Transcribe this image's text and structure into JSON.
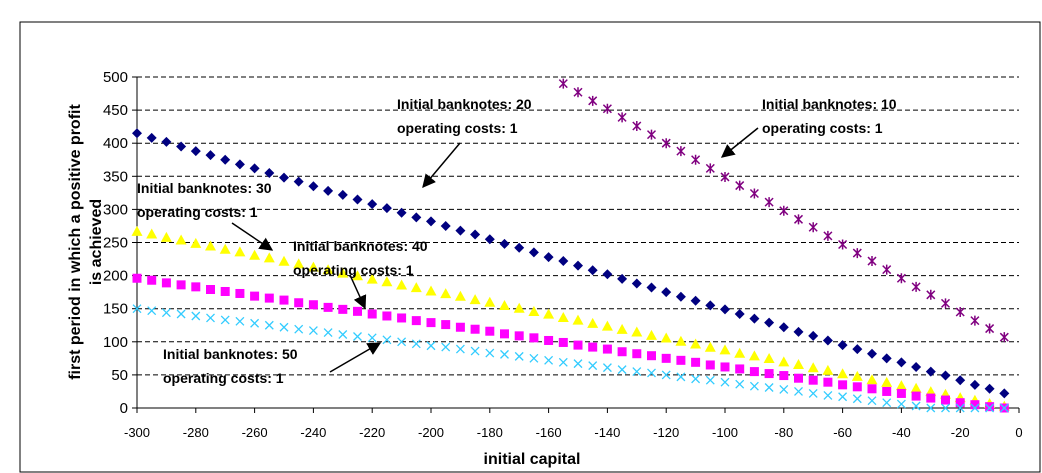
{
  "chart_data": {
    "type": "scatter",
    "xlabel": "initial capital",
    "ylabel": [
      "first period in which a positive profit",
      "is achieved"
    ],
    "xlim": [
      -300,
      0
    ],
    "xticks": [
      -300,
      -280,
      -260,
      -240,
      -220,
      -200,
      -180,
      -160,
      -140,
      -120,
      -100,
      -80,
      -60,
      -40,
      -20,
      0
    ],
    "ylim": [
      0,
      500
    ],
    "yticks": [
      0,
      50,
      100,
      150,
      200,
      250,
      300,
      350,
      400,
      450,
      500
    ],
    "grid": true,
    "x": [
      -300,
      -295,
      -290,
      -285,
      -280,
      -275,
      -270,
      -265,
      -260,
      -255,
      -250,
      -245,
      -240,
      -235,
      -230,
      -225,
      -220,
      -215,
      -210,
      -205,
      -200,
      -195,
      -190,
      -185,
      -180,
      -175,
      -170,
      -165,
      -160,
      -155,
      -150,
      -145,
      -140,
      -135,
      -130,
      -125,
      -120,
      -115,
      -110,
      -105,
      -100,
      -95,
      -90,
      -85,
      -80,
      -75,
      -70,
      -65,
      -60,
      -55,
      -50,
      -45,
      -40,
      -35,
      -30,
      -25,
      -20,
      -15,
      -10,
      -5
    ],
    "series": [
      {
        "color": "#000080",
        "marker": "diamond",
        "values": [
          415,
          408,
          402,
          395,
          388,
          382,
          375,
          368,
          362,
          355,
          348,
          342,
          335,
          328,
          322,
          315,
          308,
          302,
          295,
          288,
          282,
          275,
          268,
          262,
          255,
          248,
          242,
          235,
          228,
          222,
          215,
          208,
          202,
          195,
          188,
          182,
          175,
          168,
          162,
          155,
          149,
          142,
          135,
          129,
          122,
          115,
          109,
          102,
          95,
          89,
          82,
          75,
          69,
          62,
          55,
          49,
          42,
          35,
          29,
          22
        ]
      },
      {
        "color": "#800080",
        "marker": "star",
        "values": [
          null,
          null,
          null,
          null,
          null,
          null,
          null,
          null,
          null,
          null,
          null,
          null,
          null,
          null,
          null,
          null,
          null,
          null,
          null,
          null,
          null,
          null,
          null,
          null,
          null,
          null,
          null,
          null,
          null,
          490,
          477,
          464,
          452,
          439,
          426,
          413,
          400,
          388,
          375,
          362,
          349,
          336,
          324,
          311,
          298,
          285,
          273,
          260,
          247,
          234,
          222,
          209,
          196,
          183,
          171,
          158,
          145,
          132,
          120,
          107
        ]
      },
      {
        "color": "#ffff00",
        "marker": "triangle",
        "values": [
          266,
          262,
          257,
          253,
          248,
          244,
          239,
          235,
          230,
          226,
          221,
          217,
          212,
          208,
          203,
          199,
          194,
          190,
          185,
          181,
          176,
          172,
          168,
          163,
          159,
          154,
          150,
          145,
          141,
          136,
          132,
          127,
          123,
          118,
          114,
          109,
          105,
          100,
          96,
          91,
          87,
          82,
          78,
          74,
          69,
          65,
          60,
          56,
          51,
          47,
          42,
          38,
          33,
          29,
          24,
          20,
          15,
          11,
          6,
          2
        ]
      },
      {
        "color": "#ff00ff",
        "marker": "square",
        "values": [
          196,
          193,
          189,
          186,
          183,
          179,
          176,
          173,
          169,
          166,
          163,
          159,
          156,
          152,
          149,
          146,
          142,
          139,
          136,
          132,
          129,
          126,
          122,
          119,
          116,
          112,
          109,
          106,
          102,
          99,
          95,
          92,
          89,
          85,
          82,
          79,
          75,
          72,
          69,
          65,
          62,
          59,
          55,
          52,
          49,
          45,
          42,
          39,
          35,
          32,
          29,
          25,
          22,
          18,
          15,
          12,
          8,
          5,
          2,
          0
        ]
      },
      {
        "color": "#33ccff",
        "marker": "cross",
        "values": [
          150,
          147,
          144,
          142,
          139,
          136,
          133,
          131,
          128,
          125,
          122,
          119,
          117,
          114,
          111,
          108,
          106,
          103,
          100,
          97,
          94,
          92,
          89,
          86,
          83,
          81,
          78,
          75,
          72,
          69,
          67,
          64,
          61,
          58,
          55,
          53,
          50,
          47,
          44,
          42,
          39,
          36,
          33,
          31,
          28,
          25,
          22,
          19,
          17,
          14,
          11,
          8,
          6,
          3,
          0,
          0,
          0,
          0,
          0,
          0
        ]
      }
    ],
    "annotations": [
      [
        "Initial banknotes: 20",
        "operating costs: 1"
      ],
      [
        "Initial banknotes: 10",
        "operating costs: 1"
      ],
      [
        "Initial banknotes: 30",
        "operating costs: 1"
      ],
      [
        "Initial banknotes: 40",
        "operating costs: 1"
      ],
      [
        "Initial banknotes: 50",
        "operating costs: 1"
      ]
    ]
  }
}
